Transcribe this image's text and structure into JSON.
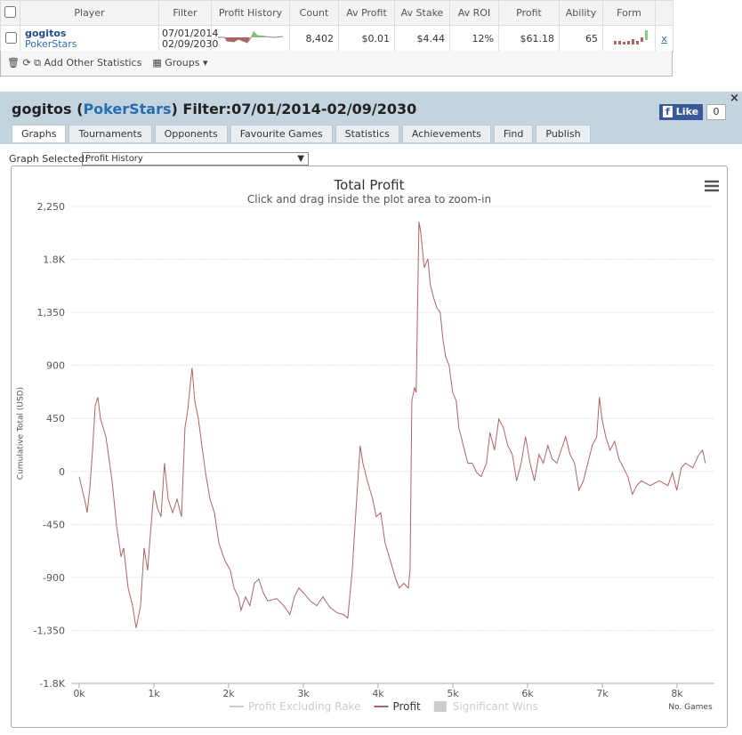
{
  "table": {
    "columns": [
      "Player",
      "Filter",
      "Profit History",
      "Count",
      "Av Profit",
      "Av Stake",
      "Av ROI",
      "Profit",
      "Ability",
      "Form"
    ],
    "row": {
      "player": "gogitos",
      "site": "PokerStars",
      "filter_from": "07/01/2014",
      "filter_to": "02/09/2030",
      "count": "8,402",
      "av_profit": "$0.01",
      "av_stake": "$4.44",
      "av_roi": "12%",
      "profit": "$61.18",
      "ability": "65",
      "remove": "x"
    },
    "toolbar": {
      "add": "Add Other Statistics",
      "groups": "Groups"
    }
  },
  "header": {
    "player": "gogitos",
    "site": "PokerStars",
    "filter": "Filter:07/01/2014-02/09/2030",
    "like": "Like",
    "like_count": "0"
  },
  "tabs": [
    "Graphs",
    "Tournaments",
    "Opponents",
    "Favourite Games",
    "Statistics",
    "Achievements",
    "Find",
    "Publish"
  ],
  "graph_select": {
    "label": "Graph Selected:",
    "value": "Profit History"
  },
  "chart_data": {
    "type": "line",
    "title": "Total Profit",
    "subtitle": "Click and drag inside the plot area to zoom-in",
    "y_label": "Cumulative Total (USD)",
    "x_label": "No. Games",
    "xlim": [
      -100,
      8500
    ],
    "ylim": [
      -1800,
      2250
    ],
    "xticks": [
      {
        "value": 0,
        "label": "0k"
      },
      {
        "value": 1000,
        "label": "1k"
      },
      {
        "value": 2000,
        "label": "2k"
      },
      {
        "value": 3000,
        "label": "3k"
      },
      {
        "value": 4000,
        "label": "4k"
      },
      {
        "value": 5000,
        "label": "5k"
      },
      {
        "value": 6000,
        "label": "6k"
      },
      {
        "value": 7000,
        "label": "7k"
      },
      {
        "value": 8000,
        "label": "8k"
      }
    ],
    "yticks": [
      {
        "value": -1800,
        "label": "-1.8K"
      },
      {
        "value": -1350,
        "label": "-1,350"
      },
      -900,
      -450,
      0,
      450,
      900,
      {
        "value": 1350,
        "label": "1,350"
      },
      {
        "value": 1800,
        "label": "1.8K"
      },
      {
        "value": 2250,
        "label": "2,250"
      }
    ],
    "grid": true,
    "x": [
      0,
      83,
      107,
      143,
      178,
      214,
      250,
      286,
      357,
      440,
      500,
      560,
      595,
      655,
      714,
      762,
      821,
      869,
      916,
      952,
      1000,
      1047,
      1095,
      1142,
      1190,
      1250,
      1309,
      1369,
      1416,
      1452,
      1488,
      1511,
      1547,
      1595,
      1642,
      1690,
      1750,
      1809,
      1869,
      1952,
      2023,
      2071,
      2130,
      2166,
      2225,
      2285,
      2344,
      2404,
      2463,
      2523,
      2642,
      2737,
      2820,
      2880,
      2940,
      2999,
      3094,
      3177,
      3261,
      3356,
      3451,
      3534,
      3594,
      3653,
      3713,
      3760,
      3796,
      3856,
      3927,
      3975,
      4034,
      4094,
      4165,
      4236,
      4284,
      4344,
      4403,
      4427,
      4451,
      4487,
      4510,
      4546,
      4570,
      4617,
      4665,
      4700,
      4748,
      4784,
      4831,
      4867,
      4903,
      4950,
      4998,
      5045,
      5081,
      5140,
      5200,
      5259,
      5319,
      5378,
      5450,
      5497,
      5557,
      5616,
      5676,
      5735,
      5795,
      5854,
      5914,
      5973,
      6033,
      6092,
      6152,
      6211,
      6271,
      6330,
      6390,
      6449,
      6509,
      6568,
      6628,
      6687,
      6747,
      6806,
      6866,
      6925,
      6961,
      6997,
      7045,
      7104,
      7164,
      7223,
      7283,
      7342,
      7402,
      7461,
      7521,
      7640,
      7759,
      7878,
      7937,
      7997,
      8056,
      8116,
      8211,
      8294,
      8342,
      8378
    ],
    "series": [
      {
        "name": "Profit",
        "color": "#b06262",
        "values": [
          -45,
          -270,
          -350,
          -140,
          180,
          560,
          630,
          445,
          295,
          -80,
          -460,
          -725,
          -650,
          -990,
          -1140,
          -1330,
          -1140,
          -650,
          -840,
          -535,
          -160,
          -310,
          -385,
          70,
          -235,
          -350,
          -235,
          -385,
          370,
          520,
          750,
          880,
          600,
          445,
          220,
          -10,
          -235,
          -350,
          -610,
          -760,
          -840,
          -990,
          -1065,
          -1180,
          -1065,
          -1140,
          -950,
          -915,
          -1030,
          -1100,
          -1080,
          -1140,
          -1215,
          -1065,
          -990,
          -1030,
          -1100,
          -1140,
          -1065,
          -1155,
          -1200,
          -1215,
          -1245,
          -840,
          -235,
          220,
          70,
          -80,
          -235,
          -385,
          -350,
          -610,
          -760,
          -915,
          -990,
          -950,
          -990,
          -840,
          600,
          710,
          670,
          2120,
          2030,
          1730,
          1805,
          1580,
          1465,
          1390,
          1350,
          1125,
          975,
          900,
          670,
          600,
          370,
          220,
          70,
          70,
          -10,
          -45,
          70,
          330,
          180,
          445,
          370,
          220,
          145,
          -80,
          70,
          295,
          70,
          -80,
          145,
          70,
          220,
          105,
          70,
          180,
          295,
          145,
          70,
          -160,
          -80,
          70,
          220,
          295,
          630,
          445,
          295,
          180,
          255,
          105,
          30,
          -45,
          -195,
          -120,
          -80,
          -120,
          -80,
          -120,
          -10,
          -160,
          30,
          70,
          30,
          145,
          180,
          70
        ]
      }
    ],
    "hidden_legend": [
      {
        "name": "Profit Excluding Rake",
        "symbol": "line"
      },
      {
        "name": "Significant Wins",
        "symbol": "box"
      }
    ],
    "hidden_color": "#cccccc"
  }
}
